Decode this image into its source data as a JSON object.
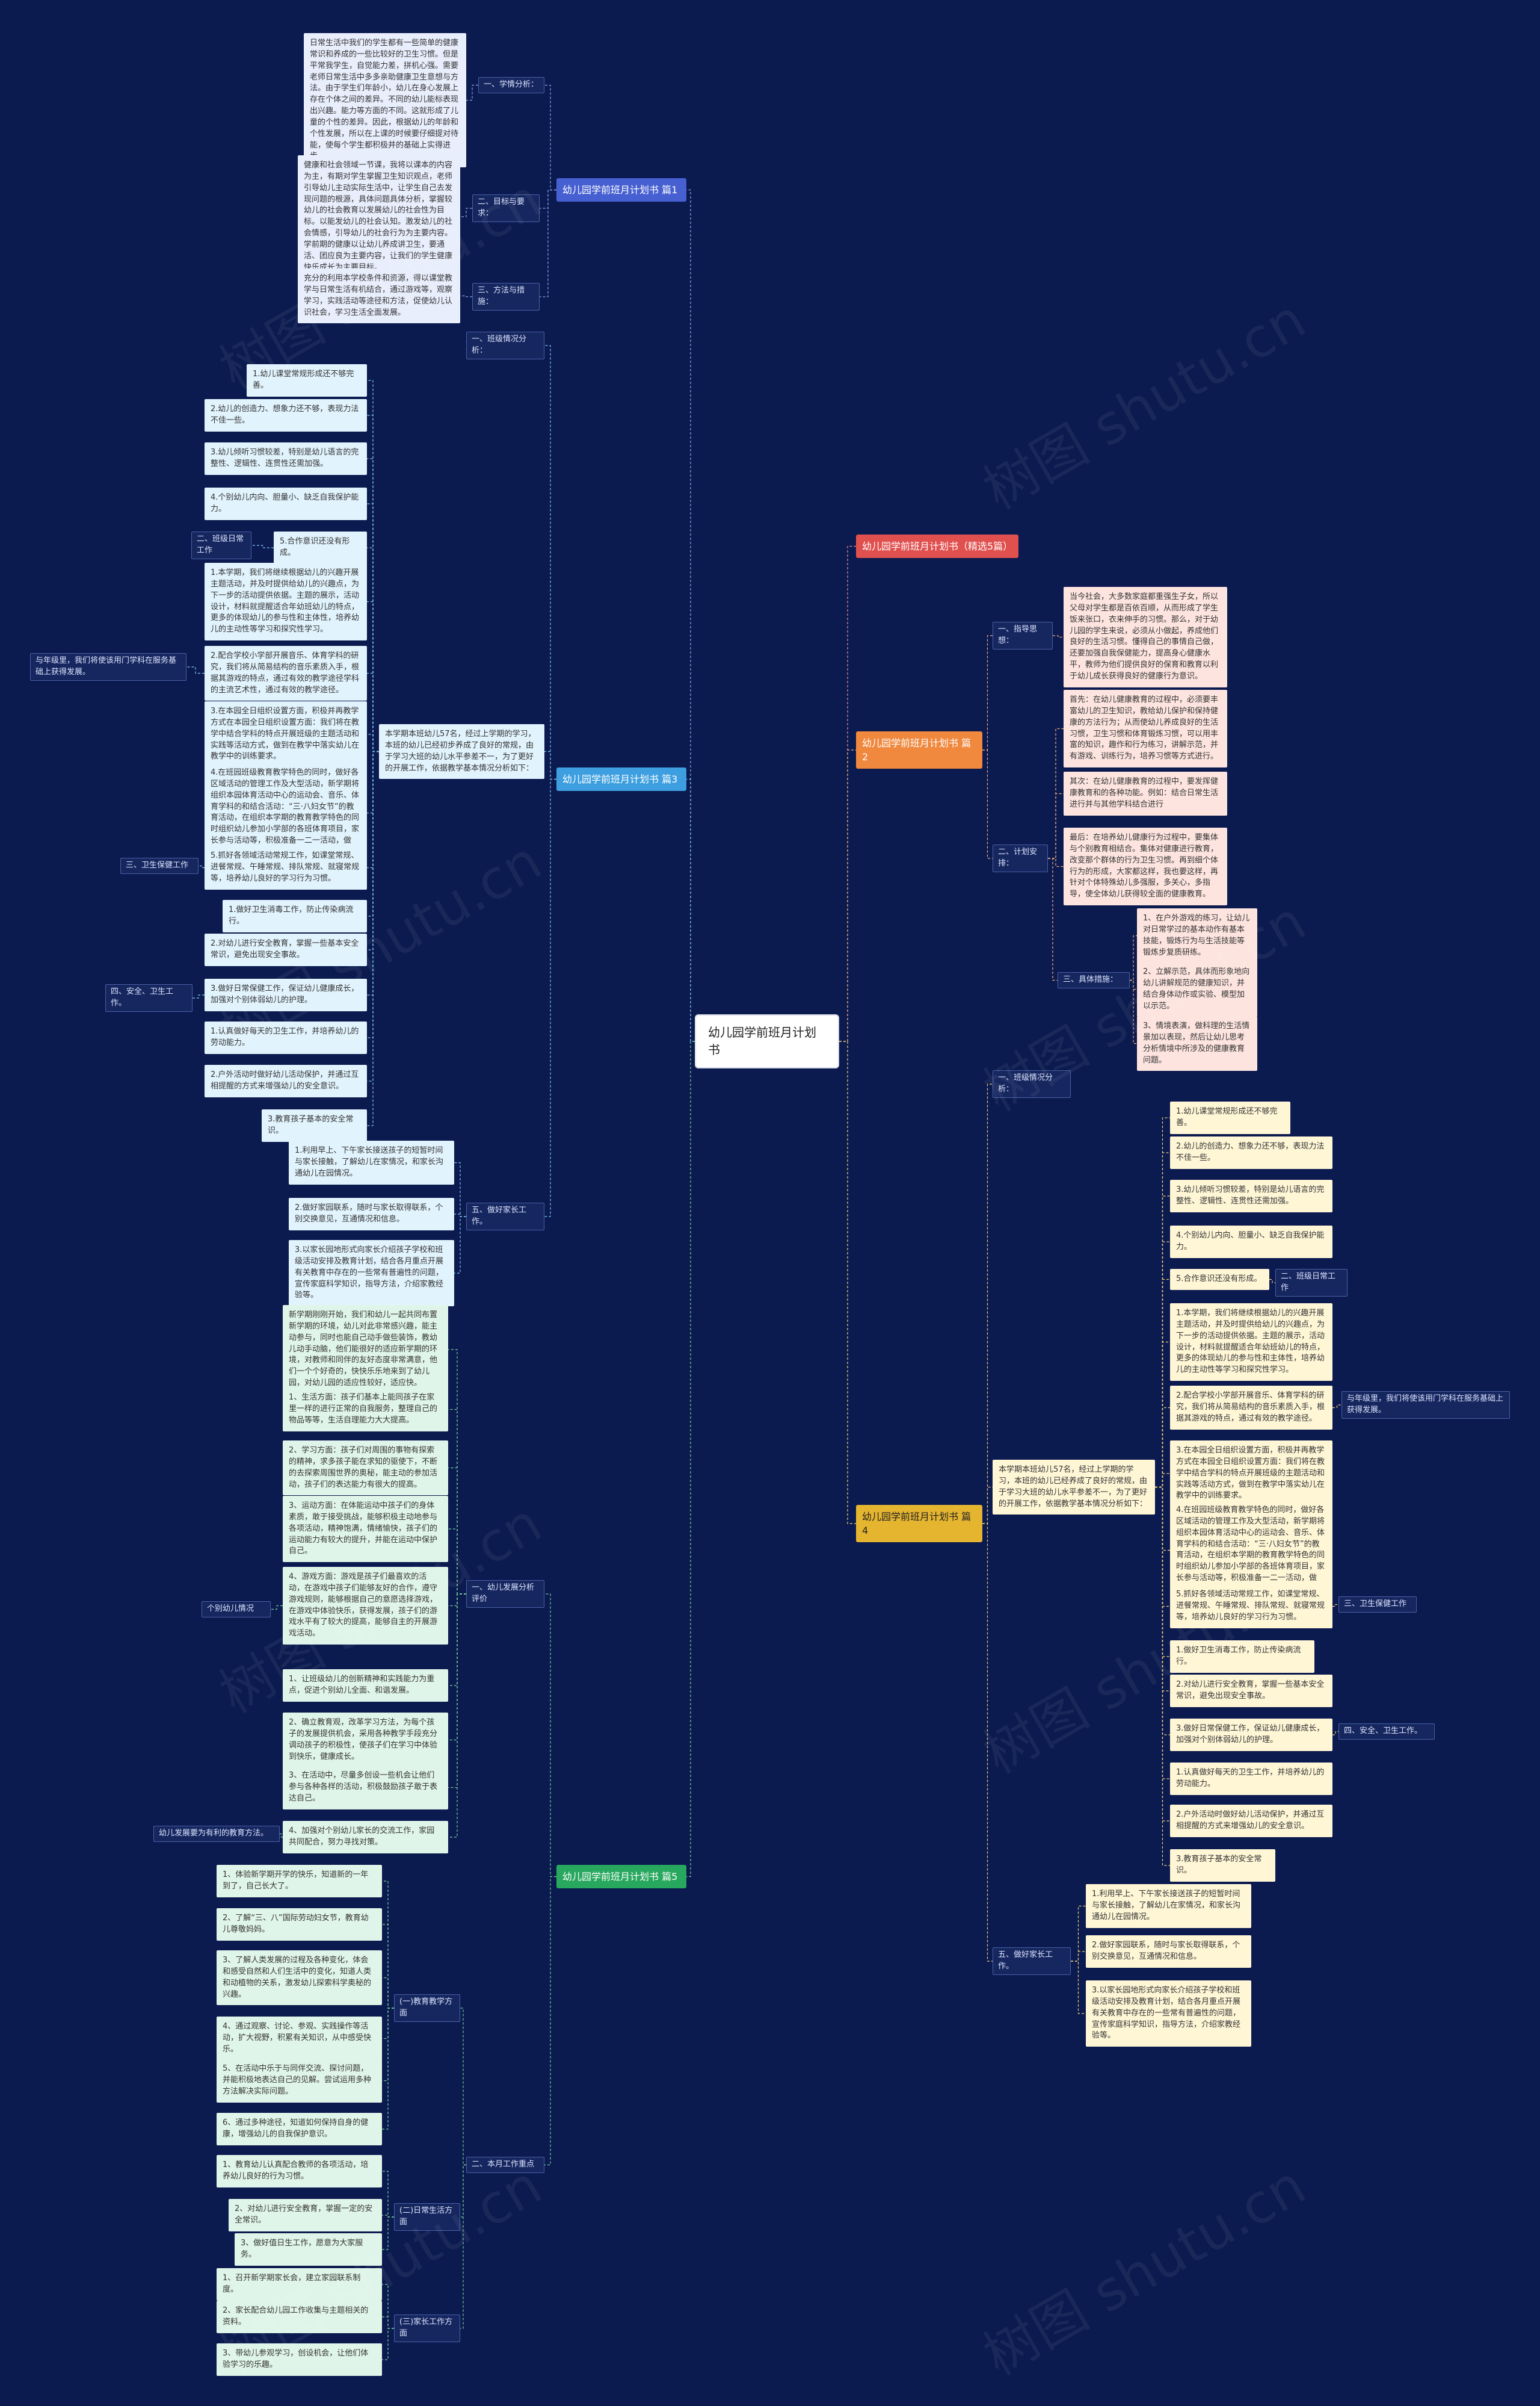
{
  "root": "幼儿园学前班月计划书",
  "watermark": "树图 shutu.cn",
  "colors": {
    "background": "#0b1a4f",
    "branch1": "#4760d1",
    "branch2": "#e0504f",
    "branch3": "#f0883e",
    "branch4": "#3d9fe0",
    "branch5": "#e5b530",
    "branch6": "#27a85e"
  },
  "nodes": [
    {
      "id": "root",
      "text": "幼儿园学前班月计划书"
    },
    {
      "id": "b1",
      "text": "幼儿园学前班月计划书 篇1"
    },
    {
      "id": "b1_l1",
      "text": "一、学情分析："
    },
    {
      "id": "b1_t1",
      "text": "日常生活中我们的学生都有一些简单的健康常识和养成的一些比较好的卫生习惯。但是平常我学生，自觉能力差，拼机心强。需要老师日常生活中多多亲助健康卫生意想与方法。由于学生们年龄小，幼儿在身心发展上存在个体之间的差异。不同的幼儿能标表现出兴趣。能力等方面的不同。这就形成了儿童的个性的差异。因此，根据幼儿的年龄和个性发展，所以在上课的时候要仔细提对待能，使每个学生都积极并的基础上实得进步。"
    },
    {
      "id": "b1_l2",
      "text": "二、目标与要求："
    },
    {
      "id": "b1_t2",
      "text": "健康和社会领域一节课，我将以课本的内容为主，有期对学生掌握卫生知识观点，老师引导幼儿主动实际生活中，让学生自己去发现问题的根源，具体问题具体分析，掌握较幼儿的社会教育以发展幼儿的社会性为目标。以能发幼儿的社会认知。激发幼儿的社会情感，引导幼儿的社会行为为主要内容。学前期的健康以让幼儿养成讲卫生，要通活、团应良为主要内容，让我们的学生健康快乐成长为主要目标。"
    },
    {
      "id": "b1_l3",
      "text": "三、方法与措施："
    },
    {
      "id": "b1_t3",
      "text": "充分的利用本学校条件和资源，得以课堂教学与日常生活有机结合，通过游戏等，观察学习，实践活动等途径和方法，促使幼儿认识社会，学习生活全面发展。"
    },
    {
      "id": "b2",
      "text": "幼儿园学前班月计划书（精选5篇）"
    },
    {
      "id": "b3",
      "text": "幼儿园学前班月计划书 篇2"
    },
    {
      "id": "b3_l1",
      "text": "一、指导思想："
    },
    {
      "id": "b3_t1",
      "text": "当今社会，大多数家庭都重强生子女，所以父母对学生都是百依百顺，从而形成了学生饭来张口，衣来伸手的习惯。那么，对于幼儿园的学生来说，必须从小做起，养成他们良好的生活习惯。懂得自己的事情自己做，还要加强自我保健能力，提高身心健康水平，教师为他们提供良好的保育和教育以利于幼儿成长获得良好的健康行为意识。"
    },
    {
      "id": "b3_l2",
      "text": "二、计划安排："
    },
    {
      "id": "b3_t2",
      "text": "首先：在幼儿健康教育的过程中，必须要丰富幼儿的卫生知识，教给幼儿保护和保持健康的方法行为；从而使幼儿养成良好的生活习惯，卫生习惯和体育锻炼习惯，可以用丰富的知识，趣作和行为练习，讲解示范，并有游戏、训练行为，培养习惯等方式进行。"
    },
    {
      "id": "b3_t3",
      "text": "其次：在幼儿健康教育的过程中，要发挥健康教育和的各种功能。例如：结合日常生活进行并与其他学科结合进行"
    },
    {
      "id": "b3_t4",
      "text": "最后：在培养幼儿健康行为过程中，要集体与个别教育相结合。集体对健康进行教育，改变那个群体的行为卫生习惯。再到细个体行为的形成，大家都这样，我也要这样，再针对个体特殊幼儿多强服，多关心，多指导，使全体幼儿获得较全面的健康教育。"
    },
    {
      "id": "b3_l3",
      "text": "三、具体措施："
    },
    {
      "id": "b3_t5",
      "text": "1、在户外游戏的练习，让幼儿对日常学过的基本动作有基本技能，锻炼行为与生活技能等锻炼步复质研练。"
    },
    {
      "id": "b3_t6",
      "text": "2、立解示范，具体而形象地向幼儿讲解规范的健康知识，并结合身体动作或实验、模型加以示范。"
    },
    {
      "id": "b3_t7",
      "text": "3、情境表演，做科理的生活情景加以表现，然后让幼儿思考分析情境中所涉及的健康教育问题。"
    },
    {
      "id": "b4",
      "text": "幼儿园学前班月计划书 篇3"
    },
    {
      "id": "b4_l1",
      "text": "一、班级情况分析："
    },
    {
      "id": "b4_intro",
      "text": "本学期本班幼儿57名，经过上学期的学习，本班的幼儿已经初步养成了良好的常规，由于学习大班的幼儿水平参差不一，为了更好的开展工作，依据教学基本情况分析如下："
    },
    {
      "id": "b4_t1",
      "text": "1.幼儿课堂常规形成还不够完善。"
    },
    {
      "id": "b4_t2",
      "text": "2.幼儿的创造力、想象力还不够，表现力法不佳一些。"
    },
    {
      "id": "b4_t3",
      "text": "3.幼儿倾听习惯较差，特别是幼儿语言的完整性、逻辑性、连贯性还需加强。"
    },
    {
      "id": "b4_t4",
      "text": "4.个别幼儿内向、胆量小、缺乏自我保护能力。"
    },
    {
      "id": "b4_t5",
      "text": "5.合作意识还没有形成。"
    },
    {
      "id": "b4_l2",
      "text": "二、班级日常工作"
    },
    {
      "id": "b4_t6",
      "text": "1.本学期，我们将继续根据幼儿的兴趣开展主题活动，并及时提供给幼儿的兴趣点，为下一步的活动提供依据。主题的展示，活动设计，材料就提醒适合年幼班幼儿的特点，更多的体现幼儿的参与性和主体性，培养幼儿的主动性等学习和探究性学习。"
    },
    {
      "id": "b4_t7",
      "text": "2.配合学校小学部开展音乐、体育学科的研究，我们将从简易结构的音乐素质入手，根据其游戏的特点，通过有效的教学途径学科的主流艺术性，通过有效的教学途径。"
    },
    {
      "id": "b4_l3",
      "text": "与年级里，我们将使该用门学科在服务基础上获得发展。"
    },
    {
      "id": "b4_t8",
      "text": "3.在本园全日组织设置方面，积极并再教学方式在本园全日组织设置方面：我们将在教学中结合学科的特点开展班级的主题活动和实践等活动方式，做到在教学中落实幼儿在教学中的训练要求。"
    },
    {
      "id": "b4_t9",
      "text": "4.在班园班级教育教学特色的同时，做好各区域活动的管理工作及大型活动，新学期将组织本园体育活动中心的运动会、音乐、体育学科的和结合活动：“三·八妇女节”的教育活动，在组织本学期的教育教学特色的同时组织幼儿参加小学部的各班体育项目，家长参与活动等，积极准备一二一活动，做好“六一”活动的各项准备工作。"
    },
    {
      "id": "b4_t10",
      "text": "5.抓好各领域活动常规工作，如课堂常规、进餐常规、午睡常规、排队常规、就寝常规等，培养幼儿良好的学习行为习惯。"
    },
    {
      "id": "b4_l4",
      "text": "三、卫生保健工作"
    },
    {
      "id": "b4_t11",
      "text": "1.做好卫生消毒工作，防止传染病流行。"
    },
    {
      "id": "b4_t12",
      "text": "2.对幼儿进行安全教育，掌握一些基本安全常识，避免出现安全事故。"
    },
    {
      "id": "b4_t13",
      "text": "3.做好日常保健工作，保证幼儿健康成长，加强对个别体弱幼儿的护理。"
    },
    {
      "id": "b4_l5",
      "text": "四、安全、卫生工作。"
    },
    {
      "id": "b4_t14",
      "text": "1.认真做好每天的卫生工作，并培养幼儿的劳动能力。"
    },
    {
      "id": "b4_t15",
      "text": "2.户外活动时做好幼儿活动保护，并通过互相提醒的方式来增强幼儿的安全意识。"
    },
    {
      "id": "b4_t16",
      "text": "3.教育孩子基本的安全常识。"
    },
    {
      "id": "b4_l6",
      "text": "五、做好家长工作。"
    },
    {
      "id": "b4_t17",
      "text": "1.利用早上、下午家长接送孩子的短暂时间与家长接触，了解幼儿在家情况，和家长沟通幼儿在园情况。"
    },
    {
      "id": "b4_t18",
      "text": "2.做好家园联系，随时与家长取得联系，个别交换意见，互通情况和信息。"
    },
    {
      "id": "b4_t19",
      "text": "3.以家长园地形式向家长介绍孩子学校和班级活动安排及教育计划，结合各月重点开展有关教育中存在的一些常有普遍性的问题，宣传家庭科学知识，指导方法，介绍家教经验等。"
    },
    {
      "id": "b5",
      "text": "幼儿园学前班月计划书 篇4"
    },
    {
      "id": "b5_l1",
      "text": "一、班级情况分析："
    },
    {
      "id": "b5_intro",
      "text": "本学期本班幼儿57名，经过上学期的学习，本班的幼儿已经养成了良好的常规，由于学习大班的幼儿水平参差不一，为了更好的开展工作，依据教学基本情况分析如下："
    },
    {
      "id": "b5_t1",
      "text": "1.幼儿课堂常规形成还不够完善。"
    },
    {
      "id": "b5_t2",
      "text": "2.幼儿的创造力、想象力还不够，表现力法不佳一些。"
    },
    {
      "id": "b5_t3",
      "text": "3.幼儿倾听习惯较差，特别是幼儿语言的完整性、逻辑性、连贯性还需加强。"
    },
    {
      "id": "b5_t4",
      "text": "4.个别幼儿内向、胆量小、缺乏自我保护能力。"
    },
    {
      "id": "b5_t5",
      "text": "5.合作意识还没有形成。"
    },
    {
      "id": "b5_l2",
      "text": "二、班级日常工作"
    },
    {
      "id": "b5_t6",
      "text": "1.本学期，我们将继续根据幼儿的兴趣开展主题活动，并及时提供给幼儿的兴趣点，为下一步的活动提供依据。主题的展示，活动设计，材料就提醒适合年幼班幼儿的特点，更多的体现幼儿的参与性和主体性，培养幼儿的主动性等学习和探究性学习。"
    },
    {
      "id": "b5_t7",
      "text": "2.配合学校小学部开展音乐、体育学科的研究，我们将从简易结构的音乐素质入手，根据其游戏的特点，通过有效的教学途径。"
    },
    {
      "id": "b5_l3",
      "text": "与年级里，我们将使该用门学科在服务基础上获得发展。"
    },
    {
      "id": "b5_t8",
      "text": "3.在本园全日组织设置方面，积极并再教学方式在本园全日组织设置方面：我们将在教学中结合学科的特点开展班级的主题活动和实践等活动方式，做到在教学中落实幼儿在教学中的训练要求。"
    },
    {
      "id": "b5_t9",
      "text": "4.在班园班级教育教学特色的同时，做好各区域活动的管理工作及大型活动，新学期将组织本园体育活动中心的运动会、音乐、体育学科的和结合活动：“三·八妇女节”的教育活动，在组织本学期的教育教学特色的同时组织幼儿参加小学部的各班体育项目，家长参与活动等，积极准备一二一活动，做好“六一”活动的各项准备工作。"
    },
    {
      "id": "b5_t10",
      "text": "5.抓好各领域活动常规工作，如课堂常规、进餐常规、午睡常规、排队常规、就寝常规等，培养幼儿良好的学习行为习惯。"
    },
    {
      "id": "b5_l4",
      "text": "三、卫生保健工作"
    },
    {
      "id": "b5_t11",
      "text": "1.做好卫生消毒工作，防止传染病流行。"
    },
    {
      "id": "b5_t12",
      "text": "2.对幼儿进行安全教育，掌握一些基本安全常识，避免出现安全事故。"
    },
    {
      "id": "b5_t13",
      "text": "3.做好日常保健工作，保证幼儿健康成长，加强对个别体弱幼儿的护理。"
    },
    {
      "id": "b5_l5",
      "text": "四、安全、卫生工作。"
    },
    {
      "id": "b5_t14",
      "text": "1.认真做好每天的卫生工作，并培养幼儿的劳动能力。"
    },
    {
      "id": "b5_t15",
      "text": "2.户外活动时做好幼儿活动保护，并通过互相提醒的方式来增强幼儿的安全意识。"
    },
    {
      "id": "b5_t16",
      "text": "3.教育孩子基本的安全常识。"
    },
    {
      "id": "b5_l6",
      "text": "五、做好家长工作。"
    },
    {
      "id": "b5_t17",
      "text": "1.利用早上、下午家长接送孩子的短暂时间与家长接触，了解幼儿在家情况，和家长沟通幼儿在园情况。"
    },
    {
      "id": "b5_t18",
      "text": "2.做好家园联系，随时与家长取得联系，个别交换意见，互通情况和信息。"
    },
    {
      "id": "b5_t19",
      "text": "3.以家长园地形式向家长介绍孩子学校和班级活动安排及教育计划，结合各月重点开展有关教育中存在的一些常有普遍性的问题，宣传家庭科学知识，指导方法，介绍家教经验等。"
    },
    {
      "id": "b6",
      "text": "幼儿园学前班月计划书 篇5"
    },
    {
      "id": "b6_l1",
      "text": "一、幼儿发展分析评价"
    },
    {
      "id": "b6_t1",
      "text": "新学期刚刚开始，我们和幼儿一起共同布置新学期的环境，幼儿对此非常感兴趣，能主动参与，同时也能自己动手做些装饰，教幼儿动手动脑，他们能很好的适应新学期的环境，对教师和同伴的友好态度非常满意，他们一个个好奇的，快快乐乐地来到了幼儿园，对幼儿园的适应性较好，适应快。"
    },
    {
      "id": "b6_t2",
      "text": "1、生活方面：孩子们基本上能同孩子在家里一样的进行正常的自我服务，整理自己的物品等等，生活自理能力大大提高。"
    },
    {
      "id": "b6_t3",
      "text": "2、学习方面：孩子们对周围的事物有探索的精神，求多孩子能在求知的驱使下，不断的去探索周围世界的奥秘，能主动的参加活动，孩子们的表达能力有很大的提高。"
    },
    {
      "id": "b6_t4",
      "text": "3、运动方面：在体能运动中孩子们的身体素质，敢于接受挑战，能够积极主动地参与各项活动，精神饱满，情绪愉快，孩子们的运动能力有较大的提升，并能在运动中保护自己。"
    },
    {
      "id": "b6_l2",
      "text": "个别幼儿情况"
    },
    {
      "id": "b6_t5",
      "text": "4、游戏方面：游戏是孩子们最喜欢的活动，在游戏中孩子们能够友好的合作，遵守游戏规则，能够根据自己的意愿选择游戏，在游戏中体验快乐，获得发展，孩子们的游戏水平有了较大的提高，能够自主的开展游戏活动。"
    },
    {
      "id": "b6_t6",
      "text": "1、让班级幼儿的创新精神和实践能力为重点，促进个别幼儿全面、和谐发展。"
    },
    {
      "id": "b6_t7",
      "text": "2、确立教育观，改革学习方法，为每个孩子的发展提供机会，采用各种教学手段充分调动孩子的积极性，使孩子们在学习中体验到快乐，健康成长。"
    },
    {
      "id": "b6_t8",
      "text": "3、在活动中，尽量多创设一些机会让他们参与各种各样的活动，积极鼓励孩子敢于表达自己。"
    },
    {
      "id": "b6_l3",
      "text": "幼儿发展要为有利的教育方法。"
    },
    {
      "id": "b6_t9",
      "text": "4、加强对个别幼儿家长的交流工作，家园共同配合，努力寻找对策。"
    },
    {
      "id": "b6_l4",
      "text": "二、本月工作重点"
    },
    {
      "id": "b6_l5",
      "text": "(一)教育教学方面"
    },
    {
      "id": "b6_t10",
      "text": "1、体验新学期开学的快乐，知道新的一年到了，自己长大了。"
    },
    {
      "id": "b6_t11",
      "text": "2、了解“三、八”国际劳动妇女节，教育幼儿尊敬妈妈。"
    },
    {
      "id": "b6_t12",
      "text": "3、了解人类发展的过程及各种变化，体会和感受自然和人们生活中的变化，知道人类和动植物的关系，激发幼儿探索科学奥秘的兴趣。"
    },
    {
      "id": "b6_t13",
      "text": "4、通过观察、讨论、参观、实践操作等活动，扩大视野，积累有关知识，从中感受快乐。"
    },
    {
      "id": "b6_t14",
      "text": "5、在活动中乐于与同伴交流、探讨问题，并能积极地表达自己的见解。尝试运用多种方法解决实际问题。"
    },
    {
      "id": "b6_t15",
      "text": "6、通过多种途径，知道如何保持自身的健康，增强幼儿的自我保护意识。"
    },
    {
      "id": "b6_l6",
      "text": "(二)日常生活方面"
    },
    {
      "id": "b6_t16",
      "text": "1、教育幼儿认真配合教师的各项活动，培养幼儿良好的行为习惯。"
    },
    {
      "id": "b6_t17",
      "text": "2、对幼儿进行安全教育，掌握一定的安全常识。"
    },
    {
      "id": "b6_t18",
      "text": "3、做好值日生工作，愿意为大家服务。"
    },
    {
      "id": "b6_l7",
      "text": "(三)家长工作方面"
    },
    {
      "id": "b6_t19",
      "text": "1、召开新学期家长会，建立家园联系制度。"
    },
    {
      "id": "b6_t20",
      "text": "2、家长配合幼儿园工作收集与主题相关的资料。"
    },
    {
      "id": "b6_t21",
      "text": "3、带幼儿参观学习，创设机会，让他们体验学习的乐趣。"
    }
  ]
}
